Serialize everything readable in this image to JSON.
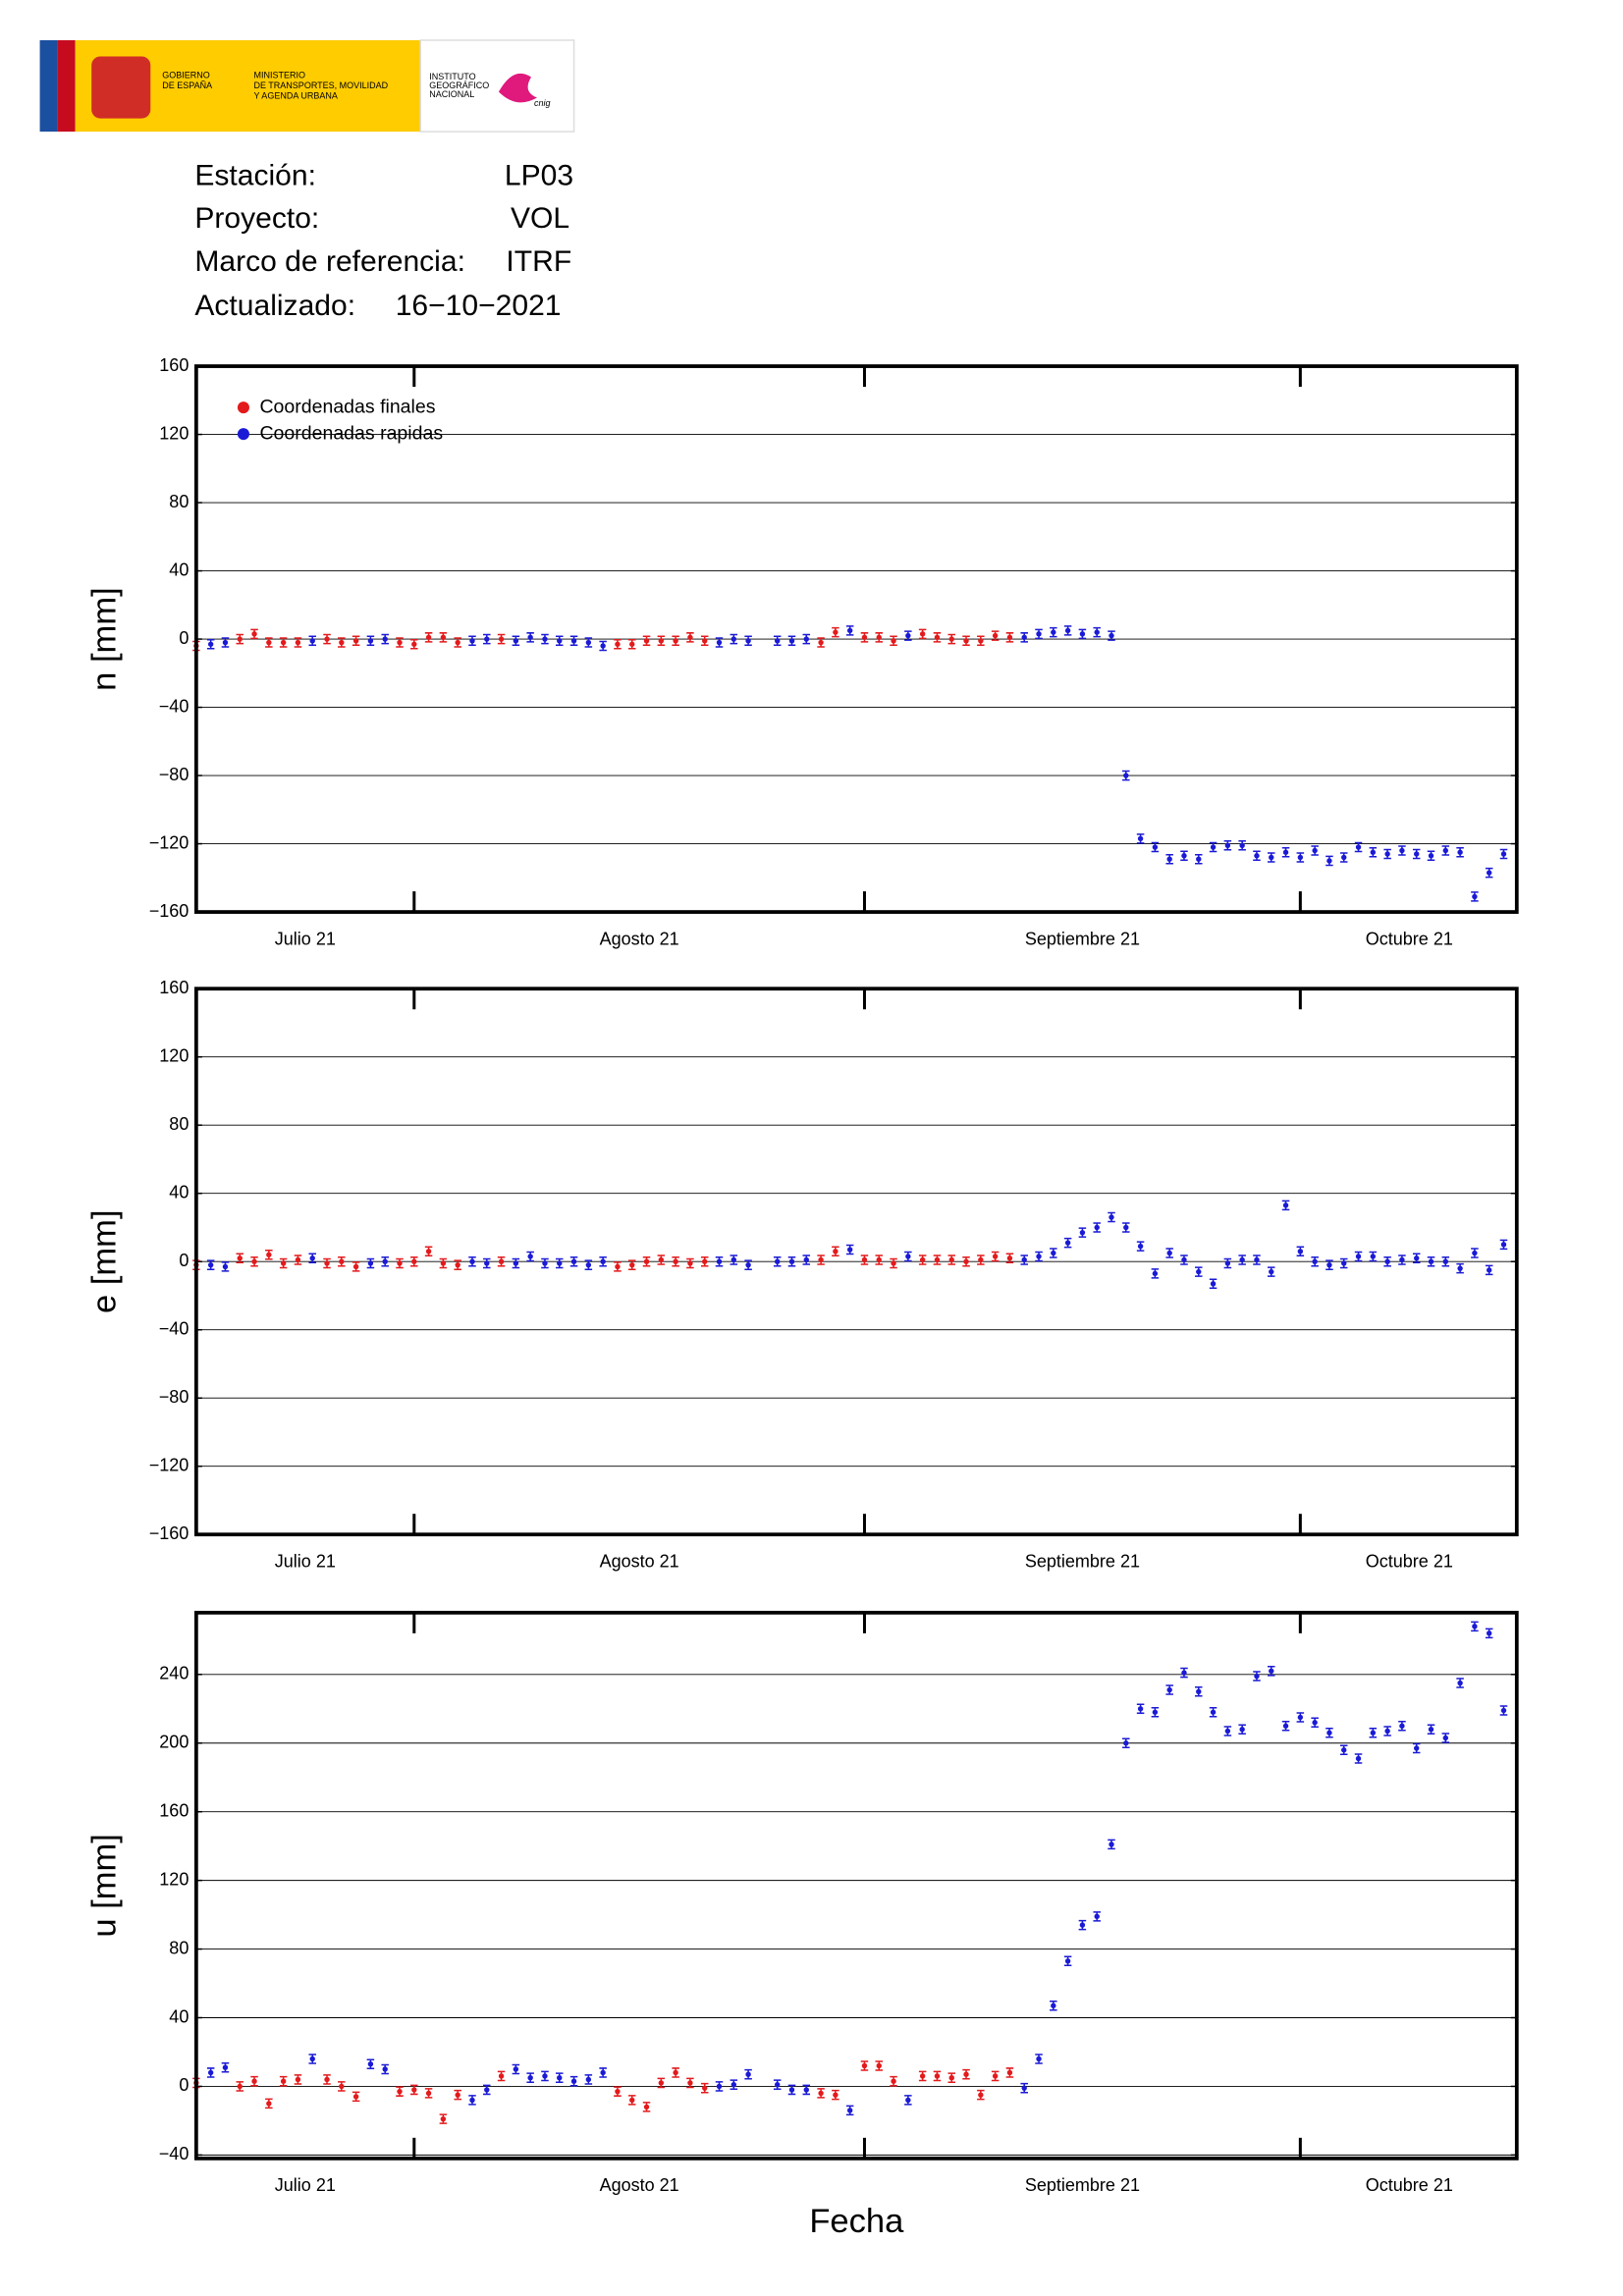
{
  "header": {
    "gov": [
      "GOBIERNO",
      "DE ESPAÑA"
    ],
    "ministry": [
      "MINISTERIO",
      "DE TRANSPORTES, MOVILIDAD",
      "Y AGENDA URBANA"
    ],
    "institute": [
      "INSTITUTO",
      "GEOGRÁFICO",
      "NACIONAL"
    ],
    "brand": "cnig"
  },
  "info": [
    [
      "Estación:",
      "LP03"
    ],
    [
      "Proyecto:",
      "VOL"
    ],
    [
      "Marco de referencia:",
      "ITRF"
    ],
    [
      "Actualizado:",
      "16−10−2021"
    ]
  ],
  "chart_data": [
    {
      "type": "scatter",
      "ylabel": "n [mm]",
      "legend": "upper left",
      "grid": true,
      "xlim": [
        16,
        106.9
      ],
      "month_ticks": [
        31,
        62,
        92
      ],
      "xticks": [
        {
          "value": 23.5,
          "label": "Julio 21"
        },
        {
          "value": 46.5,
          "label": "Agosto 21"
        },
        {
          "value": 77,
          "label": "Septiembre 21"
        },
        {
          "value": 99.5,
          "label": "Octubre 21"
        }
      ],
      "ylim": [
        -160,
        160
      ],
      "yticks": [
        {
          "value": -160,
          "label": "−160"
        },
        {
          "value": -120,
          "label": "−120"
        },
        {
          "value": -80,
          "label": "−80"
        },
        {
          "value": -40,
          "label": "−40"
        },
        0,
        40,
        80,
        120,
        160
      ],
      "series": [
        {
          "name": "Coordenadas finales",
          "color": "#e31a1c",
          "x": [
            16,
            19,
            20,
            21,
            22,
            23,
            25,
            26,
            27,
            30,
            31,
            32,
            33,
            34,
            37,
            45,
            46,
            47,
            48,
            49,
            50,
            51,
            59,
            60,
            62,
            63,
            64,
            66,
            67,
            68,
            69,
            70,
            71,
            72
          ],
          "values": [
            -4,
            0,
            3,
            -2,
            -2,
            -2,
            0,
            -2,
            -1,
            -2,
            -3,
            1,
            1,
            -2,
            0,
            -3,
            -3,
            -1,
            -1,
            -1,
            1,
            -1,
            -2,
            4,
            1,
            1,
            -1,
            3,
            1,
            0,
            -1,
            -1,
            2,
            1
          ]
        },
        {
          "name": "Coordenadas rapidas",
          "color": "#1a1ad6",
          "x": [
            17,
            18,
            24,
            28,
            29,
            35,
            36,
            38,
            39,
            40,
            41,
            42,
            43,
            44,
            52,
            53,
            54,
            56,
            57,
            58,
            61,
            65,
            73,
            74,
            75,
            76,
            77,
            78,
            79,
            80,
            81,
            82,
            83,
            84,
            85,
            86,
            87,
            88,
            89,
            90,
            91,
            92,
            93,
            94,
            95,
            96,
            97,
            98,
            99,
            100,
            101,
            102,
            103,
            104,
            105,
            106
          ],
          "values": [
            -3,
            -2,
            -1,
            -1,
            0,
            -1,
            0,
            -1,
            1,
            0,
            -1,
            -1,
            -2,
            -4,
            -2,
            0,
            -1,
            -1,
            -1,
            0,
            5,
            2,
            1,
            3,
            4,
            5,
            3,
            4,
            2,
            -80,
            -117,
            -122,
            -129,
            -127,
            -129,
            -122,
            -121,
            -121,
            -127,
            -128,
            -125,
            -128,
            -124,
            -130,
            -128,
            -122,
            -125,
            -126,
            -124,
            -126,
            -127,
            -124,
            -125,
            -151,
            -137,
            -126
          ]
        }
      ]
    },
    {
      "type": "scatter",
      "ylabel": "e [mm]",
      "grid": true,
      "xlim": [
        16,
        106.9
      ],
      "month_ticks": [
        31,
        62,
        92
      ],
      "xticks": [
        {
          "value": 23.5,
          "label": "Julio 21"
        },
        {
          "value": 46.5,
          "label": "Agosto 21"
        },
        {
          "value": 77,
          "label": "Septiembre 21"
        },
        {
          "value": 99.5,
          "label": "Octubre 21"
        }
      ],
      "ylim": [
        -160,
        160
      ],
      "yticks": [
        {
          "value": -160,
          "label": "−160"
        },
        {
          "value": -120,
          "label": "−120"
        },
        {
          "value": -80,
          "label": "−80"
        },
        {
          "value": -40,
          "label": "−40"
        },
        0,
        40,
        80,
        120,
        160
      ],
      "series": [
        {
          "color": "#e31a1c",
          "x": [
            16,
            19,
            20,
            21,
            22,
            23,
            25,
            26,
            27,
            30,
            31,
            32,
            33,
            34,
            37,
            45,
            46,
            47,
            48,
            49,
            50,
            51,
            59,
            60,
            62,
            63,
            64,
            66,
            67,
            68,
            69,
            70,
            71,
            72
          ],
          "values": [
            -2,
            2,
            0,
            4,
            -1,
            1,
            -1,
            0,
            -3,
            -1,
            0,
            6,
            -1,
            -2,
            0,
            -3,
            -2,
            0,
            1,
            0,
            -1,
            0,
            1,
            6,
            1,
            1,
            -1,
            1,
            1,
            1,
            0,
            1,
            3,
            2
          ]
        },
        {
          "color": "#1a1ad6",
          "x": [
            17,
            18,
            24,
            28,
            29,
            35,
            36,
            38,
            39,
            40,
            41,
            42,
            43,
            44,
            52,
            53,
            54,
            56,
            57,
            58,
            61,
            65,
            73,
            74,
            75,
            76,
            77,
            78,
            79,
            80,
            81,
            82,
            83,
            84,
            85,
            86,
            87,
            88,
            89,
            90,
            91,
            92,
            93,
            94,
            95,
            96,
            97,
            98,
            99,
            100,
            101,
            102,
            103,
            104,
            105,
            106
          ],
          "values": [
            -2,
            -3,
            2,
            -1,
            0,
            0,
            -1,
            -1,
            3,
            -1,
            -1,
            0,
            -2,
            0,
            0,
            1,
            -2,
            0,
            0,
            1,
            7,
            3,
            1,
            3,
            5,
            11,
            17,
            20,
            26,
            20,
            9,
            -7,
            5,
            1,
            -6,
            -13,
            -1,
            1,
            1,
            -6,
            33,
            6,
            0,
            -2,
            -1,
            3,
            3,
            0,
            1,
            2,
            0,
            0,
            -4,
            5,
            -5,
            10
          ]
        }
      ]
    },
    {
      "type": "scatter",
      "ylabel": "u [mm]",
      "xlabel": "Fecha",
      "grid": true,
      "xlim": [
        16,
        106.9
      ],
      "month_ticks": [
        31,
        62,
        92
      ],
      "xticks": [
        {
          "value": 23.5,
          "label": "Julio 21"
        },
        {
          "value": 46.5,
          "label": "Agosto 21"
        },
        {
          "value": 77,
          "label": "Septiembre 21"
        },
        {
          "value": 99.5,
          "label": "Octubre 21"
        }
      ],
      "ylim": [
        -42,
        276
      ],
      "yticks": [
        {
          "value": -40,
          "label": "−40"
        },
        0,
        40,
        80,
        120,
        160,
        200,
        240
      ],
      "series": [
        {
          "color": "#e31a1c",
          "x": [
            16,
            19,
            20,
            21,
            22,
            23,
            25,
            26,
            27,
            30,
            31,
            32,
            33,
            34,
            37,
            45,
            46,
            47,
            48,
            49,
            50,
            51,
            59,
            60,
            62,
            63,
            64,
            66,
            67,
            68,
            69,
            70,
            71,
            72
          ],
          "values": [
            2,
            0,
            3,
            -10,
            3,
            4,
            4,
            0,
            -6,
            -3,
            -2,
            -4,
            -19,
            -5,
            6,
            -3,
            -8,
            -12,
            2,
            8,
            2,
            -1,
            -4,
            -5,
            12,
            12,
            3,
            6,
            6,
            5,
            7,
            -5,
            6,
            8
          ]
        },
        {
          "color": "#1a1ad6",
          "x": [
            17,
            18,
            24,
            28,
            29,
            35,
            36,
            38,
            39,
            40,
            41,
            42,
            43,
            44,
            52,
            53,
            54,
            56,
            57,
            58,
            61,
            65,
            73,
            74,
            75,
            76,
            77,
            78,
            79,
            80,
            81,
            82,
            83,
            84,
            85,
            86,
            87,
            88,
            89,
            90,
            91,
            92,
            93,
            94,
            95,
            96,
            97,
            98,
            99,
            100,
            101,
            102,
            103,
            104,
            105,
            106
          ],
          "values": [
            8,
            11,
            16,
            13,
            10,
            -8,
            -2,
            10,
            5,
            6,
            5,
            3,
            4,
            8,
            0,
            1,
            7,
            1,
            -2,
            -2,
            -14,
            -8,
            -1,
            16,
            47,
            73,
            94,
            99,
            141,
            200,
            220,
            218,
            231,
            241,
            230,
            218,
            207,
            208,
            239,
            242,
            210,
            215,
            212,
            206,
            196,
            191,
            206,
            207,
            210,
            197,
            208,
            203,
            235,
            268,
            264,
            219
          ]
        }
      ]
    }
  ]
}
